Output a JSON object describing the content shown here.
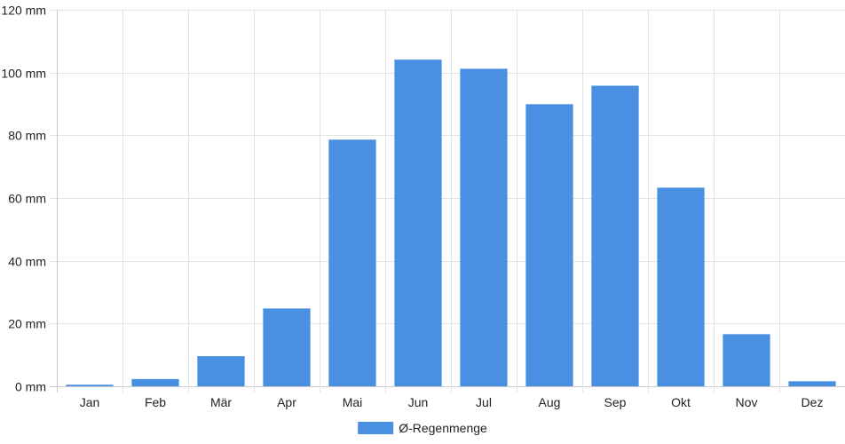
{
  "chart_data": {
    "type": "bar",
    "categories": [
      "Jan",
      "Feb",
      "Mär",
      "Apr",
      "Mai",
      "Jun",
      "Jul",
      "Aug",
      "Sep",
      "Okt",
      "Nov",
      "Dez"
    ],
    "series": [
      {
        "name": "Ø-Regenmenge",
        "values": [
          0.5,
          2.3,
          9.6,
          24.8,
          78.6,
          104.1,
          101.2,
          89.9,
          95.8,
          63.3,
          16.6,
          1.6
        ],
        "color": "#4a90e2"
      }
    ],
    "y_unit": "mm",
    "ylim": [
      0,
      120
    ],
    "y_ticks": [
      0,
      20,
      40,
      60,
      80,
      100,
      120
    ],
    "grid": true,
    "legend_position": "bottom"
  }
}
